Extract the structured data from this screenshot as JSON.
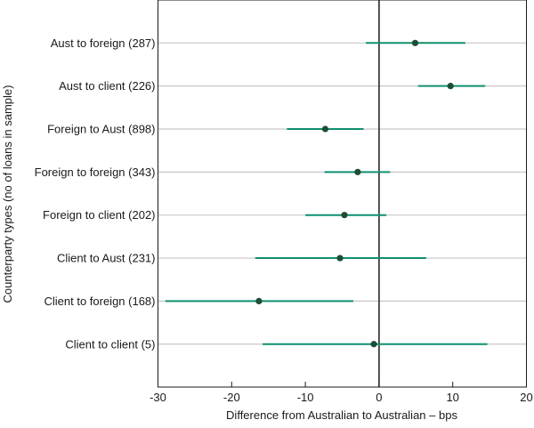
{
  "chart_data": {
    "type": "scatter",
    "subtype": "point-with-interval",
    "xlabel": "Difference from Australian to Australian – bps",
    "ylabel": "Counterparty types (no of loans in sample)",
    "xlim": [
      -30,
      20
    ],
    "xticks": [
      -30,
      -20,
      -10,
      0,
      10,
      20
    ],
    "grid": "horizontal",
    "reference_line_x": 0,
    "colors": {
      "interval": "#0f9070",
      "point": "#1e4d35",
      "grid": "#c8c8c8",
      "axis": "#1a1a1a"
    },
    "categories": [
      "Aust to foreign (287)",
      "Aust to client (226)",
      "Foreign to Aust (898)",
      "Foreign to foreign (343)",
      "Foreign to client (202)",
      "Client to Aust (231)",
      "Client to foreign (168)",
      "Client to client (5)"
    ],
    "estimates": [
      4.9,
      9.7,
      -7.3,
      -2.9,
      -4.7,
      -5.3,
      -16.3,
      -0.7
    ],
    "lower": [
      -1.8,
      5.3,
      -12.5,
      -7.4,
      -10.0,
      -16.8,
      -29.0,
      -15.8
    ],
    "upper": [
      11.7,
      14.4,
      -2.1,
      1.5,
      1.0,
      6.4,
      -3.5,
      14.7
    ]
  }
}
